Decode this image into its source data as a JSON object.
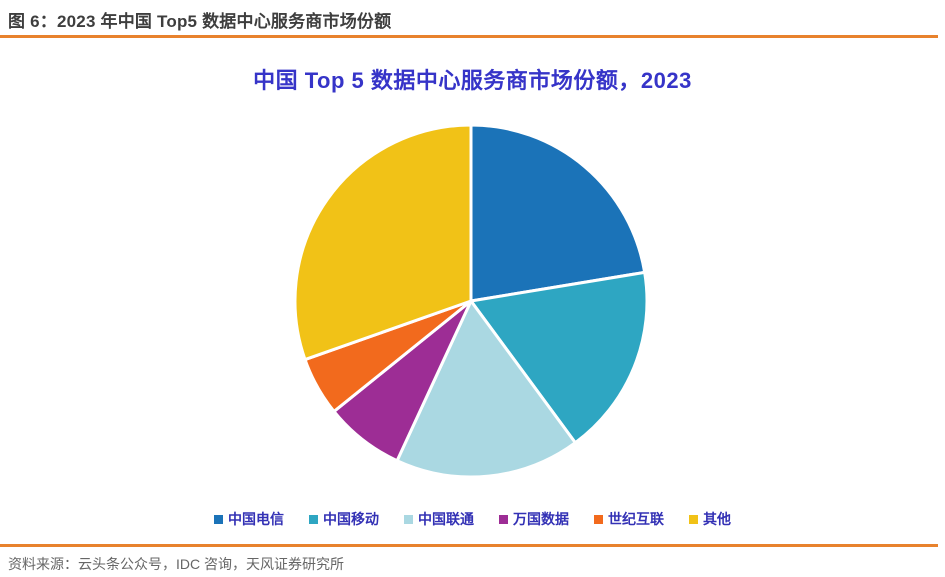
{
  "page": {
    "caption": "图 6：2023 年中国 Top5 数据中心服务商市场份额",
    "source": "资料来源：云头条公众号，IDC 咨询，天风证券研究所"
  },
  "colors": {
    "accent_orange": "#E8822D",
    "caption_text": "#3E3E3E",
    "title_text": "#3634C8",
    "legend_text": "#3331B5",
    "source_text": "#666666",
    "slice_gap_stroke": "#FFFFFF"
  },
  "chart_data": {
    "type": "pie",
    "title": "中国 Top 5 数据中心服务商市场份额，2023",
    "unit": "percent_market_share",
    "start_angle_deg_from_top": 0,
    "direction": "clockwise",
    "legend_position": "bottom",
    "slices": [
      {
        "label": "中国电信",
        "value": 22.4,
        "color": "#1B73B8"
      },
      {
        "label": "中国移动",
        "value": 17.5,
        "color": "#2EA6C2"
      },
      {
        "label": "中国联通",
        "value": 17.0,
        "color": "#AAD8E2"
      },
      {
        "label": "万国数据",
        "value": 7.3,
        "color": "#9D2D95"
      },
      {
        "label": "世纪互联",
        "value": 5.4,
        "color": "#F26A1D"
      },
      {
        "label": "其他",
        "value": 30.4,
        "color": "#F1C217"
      }
    ]
  }
}
